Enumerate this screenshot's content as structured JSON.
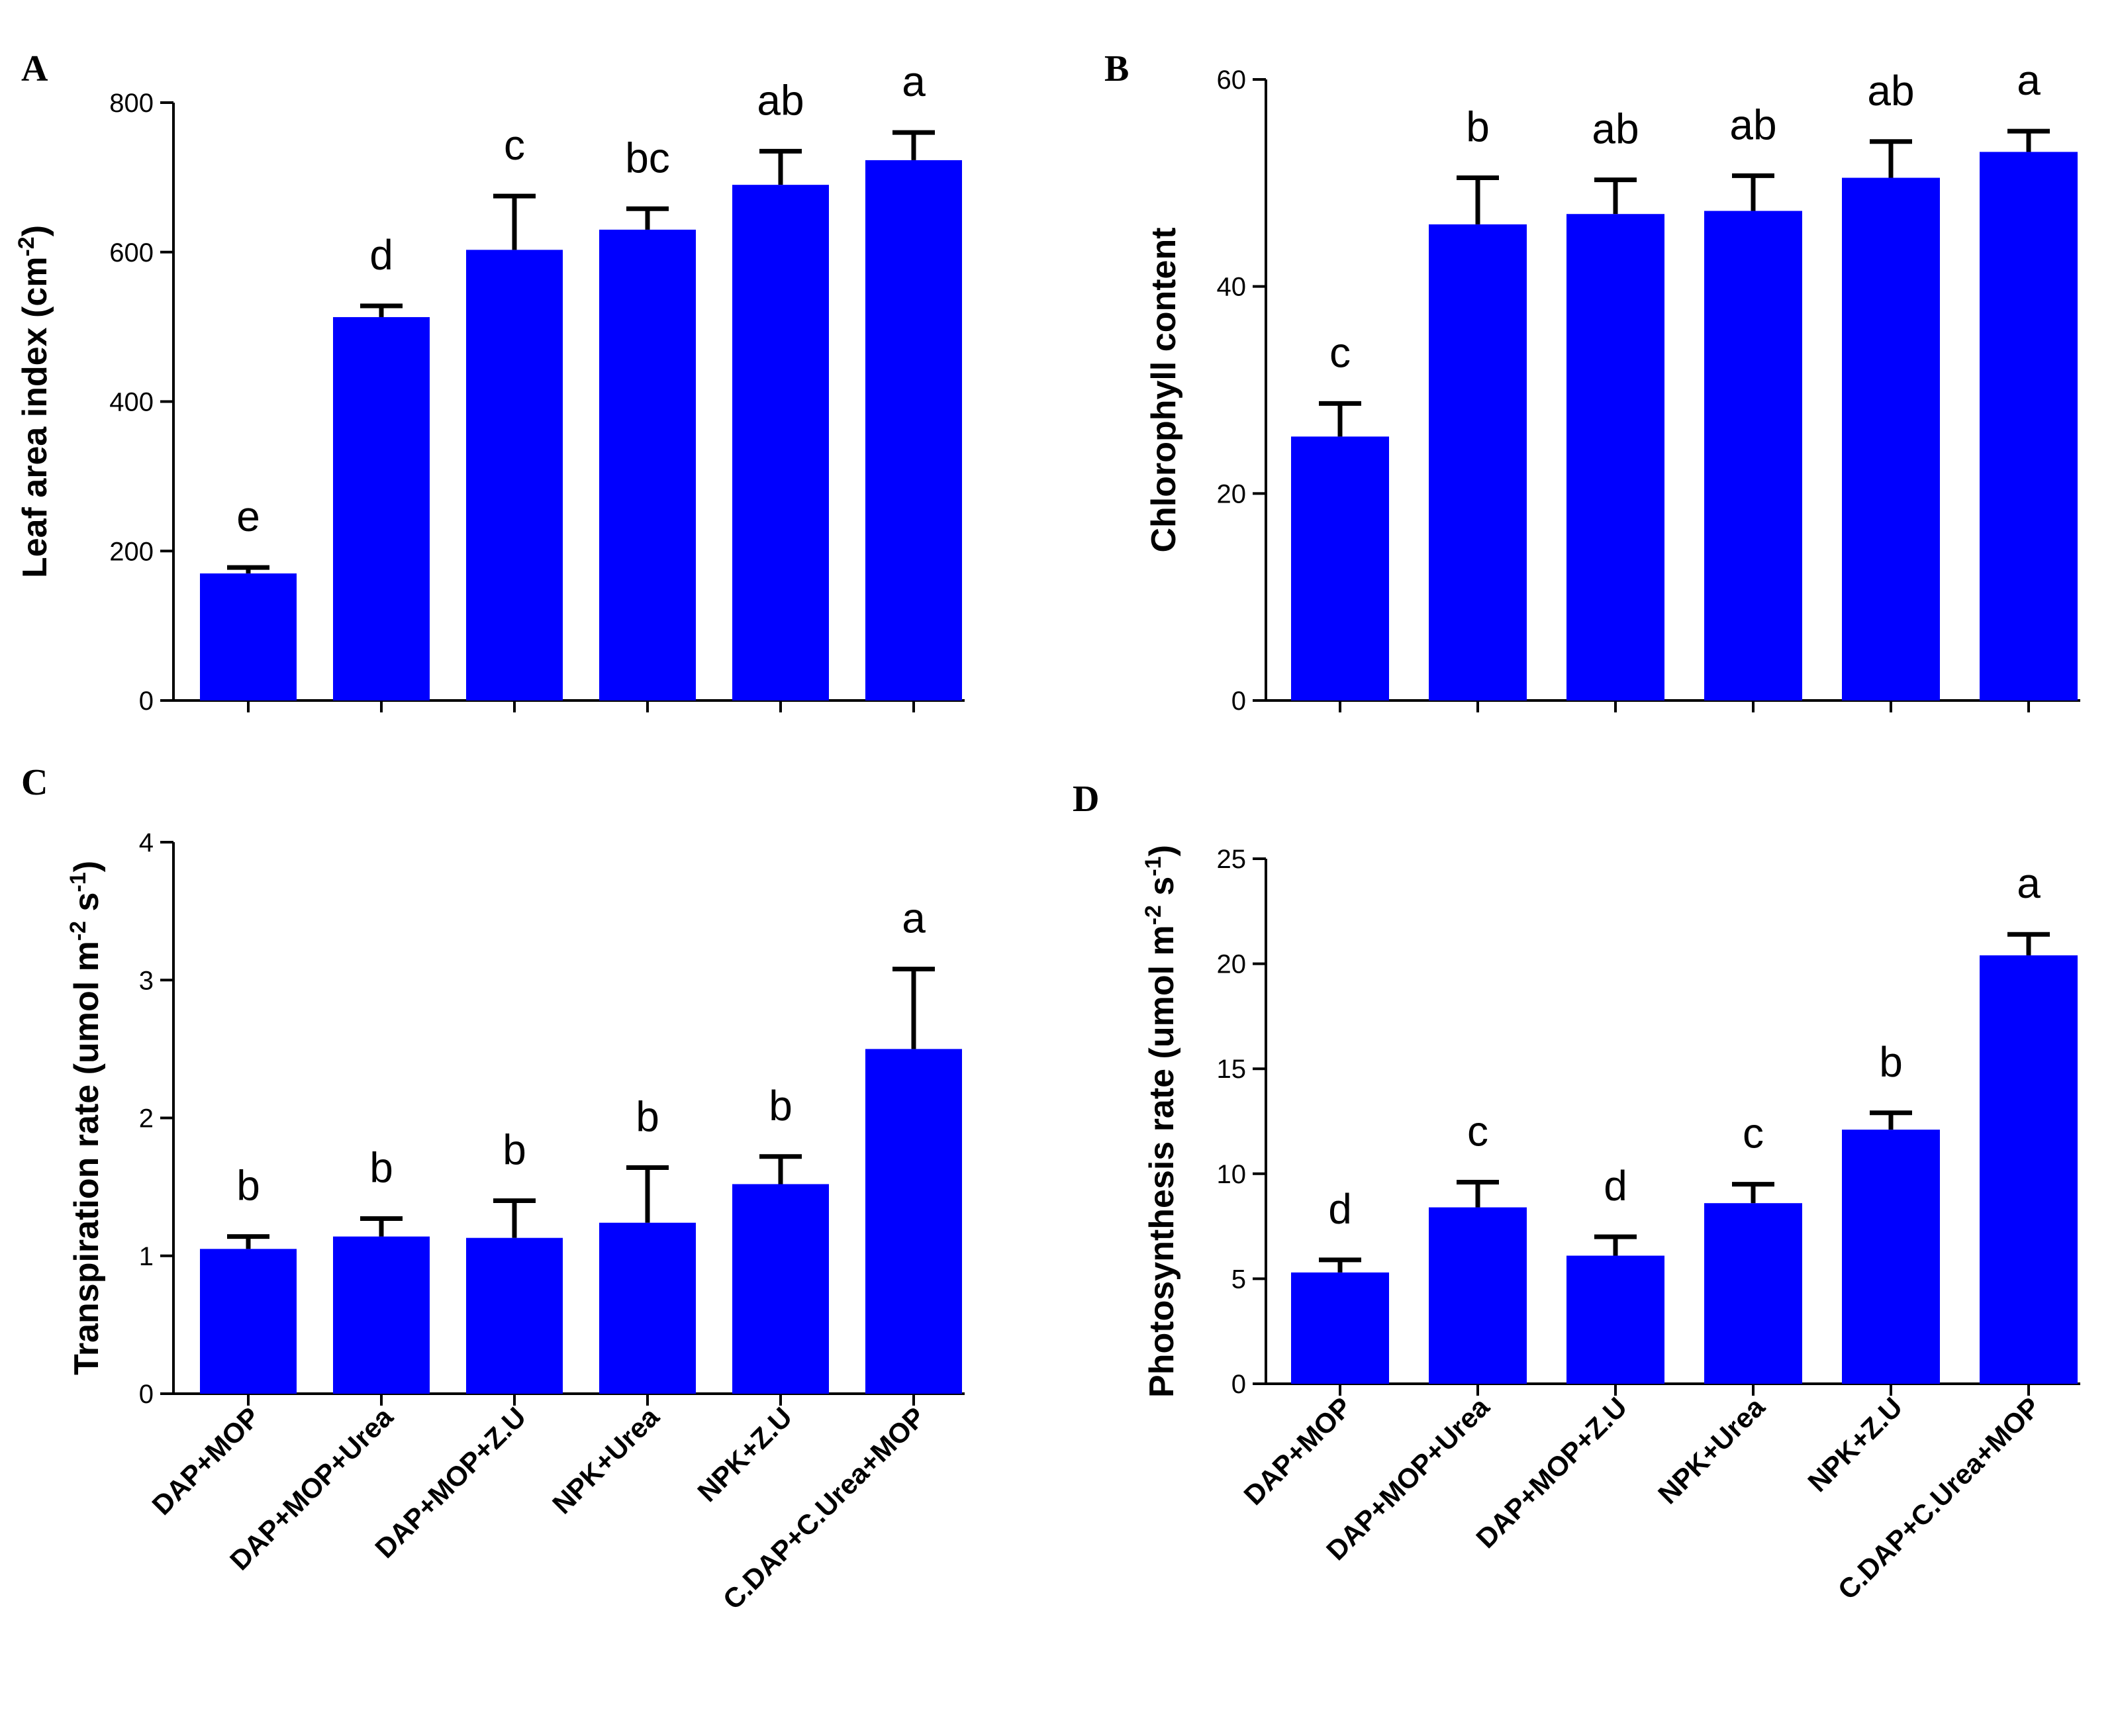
{
  "figure_colors": {
    "bar": "#0000ff",
    "axis": "#000000"
  },
  "chart_data": [
    {
      "panel": "A",
      "type": "bar",
      "categories": [
        "DAP+MOP",
        "DAP+MOP+Urea",
        "DAP+MOP+Z.U",
        "NPK+Urea",
        "NPK+Z.U",
        "C.DAP+C.Urea+MOP"
      ],
      "values": [
        170,
        513,
        603,
        630,
        690,
        723
      ],
      "errors": [
        8,
        15,
        72,
        28,
        45,
        37
      ],
      "letters": [
        "e",
        "d",
        "c",
        "bc",
        "ab",
        "a"
      ],
      "ylabel": "Leaf area index (cm",
      "ylabel_sup": "-2",
      "ylabel_end": ")",
      "ylim": [
        0,
        800
      ],
      "yticks": [
        0,
        200,
        400,
        600,
        800
      ],
      "show_xlabels": false
    },
    {
      "panel": "B",
      "type": "bar",
      "categories": [
        "DAP+MOP",
        "DAP+MOP+Urea",
        "DAP+MOP+Z.U",
        "NPK+Urea",
        "NPK+Z.U",
        "C.DAP+C.Urea+MOP"
      ],
      "values": [
        25.5,
        46,
        47,
        47.3,
        50.5,
        53
      ],
      "errors": [
        3.2,
        4.5,
        3.3,
        3.4,
        3.5,
        2
      ],
      "letters": [
        "c",
        "b",
        "ab",
        "ab",
        "ab",
        "a"
      ],
      "ylabel": "Chlorophyll content",
      "ylabel_sup": "",
      "ylabel_end": "",
      "ylim": [
        0,
        60
      ],
      "yticks": [
        0,
        20,
        40,
        60
      ],
      "show_xlabels": false
    },
    {
      "panel": "C",
      "type": "bar",
      "categories": [
        "DAP+MOP",
        "DAP+MOP+Urea",
        "DAP+MOP+Z.U",
        "NPK+Urea",
        "NPK+Z.U",
        "C.DAP+C.Urea+MOP"
      ],
      "values": [
        1.05,
        1.14,
        1.13,
        1.24,
        1.52,
        2.5
      ],
      "errors": [
        0.09,
        0.13,
        0.27,
        0.4,
        0.2,
        0.58
      ],
      "letters": [
        "b",
        "b",
        "b",
        "b",
        "b",
        "a"
      ],
      "ylabel": "Transpiration rate (umol m",
      "ylabel_sup": "-2",
      "ylabel_mid": " s",
      "ylabel_sup2": "-1",
      "ylabel_end": ")",
      "ylim": [
        0,
        4
      ],
      "yticks": [
        0,
        1,
        2,
        3,
        4
      ],
      "show_xlabels": true
    },
    {
      "panel": "D",
      "type": "bar",
      "categories": [
        "DAP+MOP",
        "DAP+MOP+Urea",
        "DAP+MOP+Z.U",
        "NPK+Urea",
        "NPK+Z.U",
        "C.DAP+C.Urea+MOP"
      ],
      "values": [
        5.3,
        8.4,
        6.1,
        8.6,
        12.1,
        20.4
      ],
      "errors": [
        0.6,
        1.2,
        0.9,
        0.9,
        0.8,
        1
      ],
      "letters": [
        "d",
        "c",
        "d",
        "c",
        "b",
        "a"
      ],
      "ylabel": "Photosynthesis rate (umol m",
      "ylabel_sup": "-2",
      "ylabel_mid": " s",
      "ylabel_sup2": "-1",
      "ylabel_end": ")",
      "ylim": [
        0,
        25
      ],
      "yticks": [
        0,
        5,
        10,
        15,
        20,
        25
      ],
      "show_xlabels": true
    }
  ]
}
